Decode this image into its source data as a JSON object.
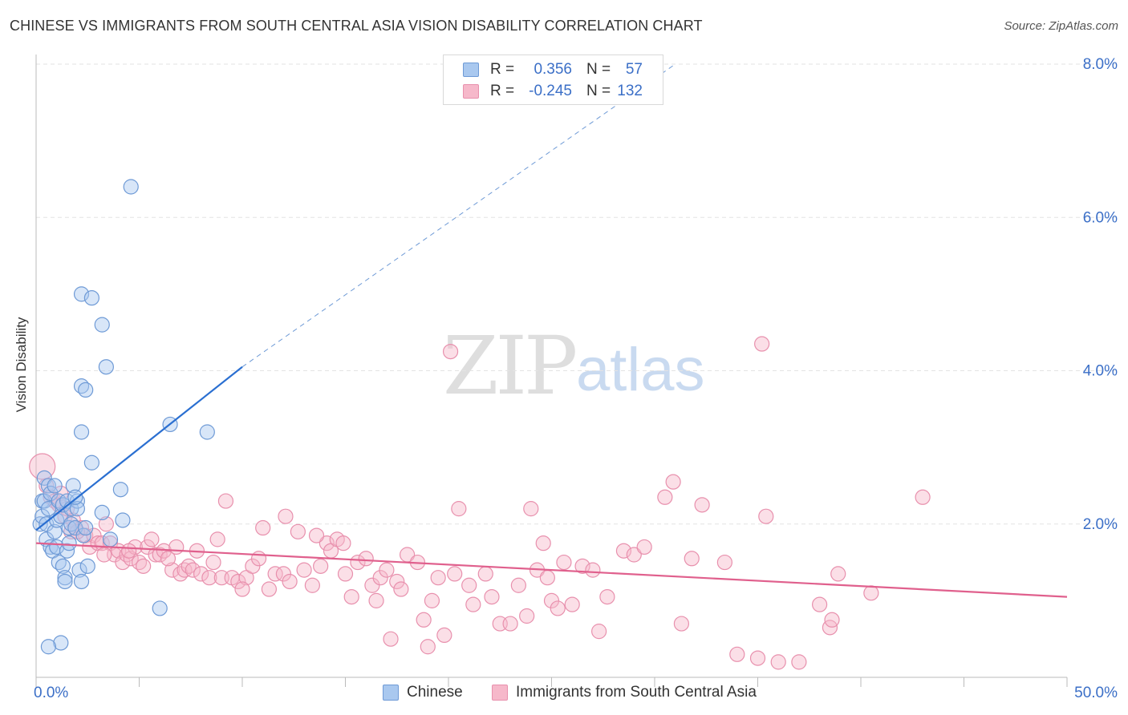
{
  "title": "CHINESE VS IMMIGRANTS FROM SOUTH CENTRAL ASIA VISION DISABILITY CORRELATION CHART",
  "source": "Source: ZipAtlas.com",
  "watermark": {
    "zip": "ZIP",
    "atlas": "atlas"
  },
  "legend": {
    "rows": [
      {
        "r_label": "R =",
        "r_value": "0.356",
        "n_label": "N =",
        "n_value": "57"
      },
      {
        "r_label": "R =",
        "r_value": "-0.245",
        "n_label": "N =",
        "n_value": "132"
      }
    ]
  },
  "bottom_legend": {
    "chinese": "Chinese",
    "immigrants": "Immigrants from South Central Asia"
  },
  "colors": {
    "chinese_fill": "#a9c8ef",
    "chinese_stroke": "#6e9ad6",
    "chinese_line": "#2a6fd1",
    "immigrants_fill": "#f6b8ca",
    "immigrants_stroke": "#e890ad",
    "immigrants_line": "#e0608d",
    "axis_tick_text": "#3b6fc7",
    "grid": "#e3e3e3"
  },
  "chart_data": {
    "type": "scatter",
    "title": "CHINESE VS IMMIGRANTS FROM SOUTH CENTRAL ASIA VISION DISABILITY CORRELATION CHART",
    "xlabel": "",
    "ylabel": "Vision Disability",
    "xlim": [
      0,
      50
    ],
    "ylim": [
      0,
      8.0
    ],
    "x_tick_labels": [
      "0.0%",
      "50.0%"
    ],
    "y_ticks": [
      2.0,
      4.0,
      6.0,
      8.0
    ],
    "y_tick_labels": [
      "2.0%",
      "4.0%",
      "6.0%",
      "8.0%"
    ],
    "grid": "horizontal dashed",
    "legend_position": "top-center",
    "series": [
      {
        "name": "Chinese",
        "points": [
          [
            0.2,
            2.0
          ],
          [
            0.3,
            2.1
          ],
          [
            0.3,
            2.3
          ],
          [
            0.4,
            2.6
          ],
          [
            0.4,
            2.3
          ],
          [
            0.5,
            2.0
          ],
          [
            0.5,
            1.8
          ],
          [
            0.6,
            2.5
          ],
          [
            0.6,
            2.2
          ],
          [
            0.7,
            1.7
          ],
          [
            0.7,
            2.4
          ],
          [
            0.8,
            1.65
          ],
          [
            0.9,
            1.9
          ],
          [
            0.9,
            2.5
          ],
          [
            1.0,
            1.7
          ],
          [
            1.0,
            2.05
          ],
          [
            1.1,
            1.5
          ],
          [
            1.1,
            2.3
          ],
          [
            1.2,
            0.45
          ],
          [
            1.2,
            2.1
          ],
          [
            1.3,
            2.25
          ],
          [
            1.3,
            1.45
          ],
          [
            1.4,
            1.3
          ],
          [
            1.4,
            1.25
          ],
          [
            1.5,
            2.3
          ],
          [
            1.5,
            1.65
          ],
          [
            1.6,
            1.75
          ],
          [
            1.6,
            1.95
          ],
          [
            1.7,
            2.2
          ],
          [
            1.7,
            2.0
          ],
          [
            1.8,
            2.5
          ],
          [
            1.9,
            1.95
          ],
          [
            2.0,
            2.3
          ],
          [
            2.0,
            2.2
          ],
          [
            2.1,
            1.4
          ],
          [
            2.2,
            1.25
          ],
          [
            2.2,
            3.2
          ],
          [
            2.3,
            1.85
          ],
          [
            2.4,
            1.95
          ],
          [
            2.5,
            1.45
          ],
          [
            2.2,
            5.0
          ],
          [
            2.2,
            3.8
          ],
          [
            2.4,
            3.75
          ],
          [
            2.7,
            4.95
          ],
          [
            2.7,
            2.8
          ],
          [
            3.2,
            2.15
          ],
          [
            3.2,
            4.6
          ],
          [
            3.4,
            4.05
          ],
          [
            3.6,
            1.8
          ],
          [
            4.1,
            2.45
          ],
          [
            4.2,
            2.05
          ],
          [
            4.6,
            6.4
          ],
          [
            6.0,
            0.9
          ],
          [
            6.5,
            3.3
          ],
          [
            8.3,
            3.2
          ],
          [
            0.6,
            0.4
          ],
          [
            1.9,
            2.35
          ]
        ],
        "trend": {
          "x": [
            0,
            10
          ],
          "y": [
            1.92,
            4.05
          ],
          "extrapolated_to": [
            31,
            8.0
          ]
        }
      },
      {
        "name": "Immigrants from South Central Asia",
        "points": [
          [
            0.3,
            2.75
          ],
          [
            0.5,
            2.5
          ],
          [
            0.7,
            2.35
          ],
          [
            0.9,
            2.3
          ],
          [
            1.1,
            2.25
          ],
          [
            1.2,
            2.4
          ],
          [
            1.4,
            2.1
          ],
          [
            1.5,
            2.2
          ],
          [
            1.7,
            1.9
          ],
          [
            1.8,
            2.05
          ],
          [
            1.9,
            1.95
          ],
          [
            2.2,
            1.95
          ],
          [
            2.4,
            1.85
          ],
          [
            2.6,
            1.7
          ],
          [
            2.8,
            1.85
          ],
          [
            3.0,
            1.75
          ],
          [
            3.2,
            1.75
          ],
          [
            3.4,
            2.0
          ],
          [
            3.6,
            1.75
          ],
          [
            3.8,
            1.6
          ],
          [
            4.0,
            1.65
          ],
          [
            4.2,
            1.5
          ],
          [
            4.4,
            1.6
          ],
          [
            4.6,
            1.55
          ],
          [
            4.8,
            1.7
          ],
          [
            5.0,
            1.5
          ],
          [
            5.2,
            1.45
          ],
          [
            5.4,
            1.7
          ],
          [
            5.6,
            1.8
          ],
          [
            5.8,
            1.6
          ],
          [
            6.0,
            1.6
          ],
          [
            6.2,
            1.65
          ],
          [
            6.6,
            1.4
          ],
          [
            6.8,
            1.7
          ],
          [
            7.0,
            1.35
          ],
          [
            7.2,
            1.4
          ],
          [
            7.4,
            1.45
          ],
          [
            7.6,
            1.4
          ],
          [
            7.8,
            1.65
          ],
          [
            8.0,
            1.35
          ],
          [
            8.4,
            1.3
          ],
          [
            8.6,
            1.5
          ],
          [
            8.8,
            1.8
          ],
          [
            9.0,
            1.3
          ],
          [
            9.5,
            1.3
          ],
          [
            9.8,
            1.25
          ],
          [
            10.2,
            1.3
          ],
          [
            10.5,
            1.45
          ],
          [
            10.8,
            1.55
          ],
          [
            11.0,
            1.95
          ],
          [
            11.3,
            1.15
          ],
          [
            11.6,
            1.35
          ],
          [
            12.0,
            1.35
          ],
          [
            12.3,
            1.25
          ],
          [
            12.7,
            1.9
          ],
          [
            13.0,
            1.4
          ],
          [
            13.4,
            1.2
          ],
          [
            13.8,
            1.45
          ],
          [
            14.1,
            1.75
          ],
          [
            14.3,
            1.65
          ],
          [
            14.6,
            1.8
          ],
          [
            15.0,
            1.35
          ],
          [
            15.3,
            1.05
          ],
          [
            15.6,
            1.5
          ],
          [
            16.0,
            1.55
          ],
          [
            16.3,
            1.2
          ],
          [
            16.7,
            1.3
          ],
          [
            17.0,
            1.4
          ],
          [
            17.5,
            1.25
          ],
          [
            17.7,
            1.15
          ],
          [
            18.0,
            1.6
          ],
          [
            18.5,
            1.5
          ],
          [
            18.8,
            0.75
          ],
          [
            19.2,
            1.0
          ],
          [
            19.5,
            1.3
          ],
          [
            19.8,
            0.55
          ],
          [
            20.3,
            1.35
          ],
          [
            20.5,
            2.2
          ],
          [
            21.0,
            1.2
          ],
          [
            21.2,
            0.95
          ],
          [
            21.8,
            1.35
          ],
          [
            22.1,
            1.05
          ],
          [
            22.5,
            0.7
          ],
          [
            23.0,
            0.7
          ],
          [
            23.4,
            1.2
          ],
          [
            23.8,
            0.8
          ],
          [
            24.0,
            2.2
          ],
          [
            24.3,
            1.4
          ],
          [
            24.6,
            1.75
          ],
          [
            25.0,
            1.0
          ],
          [
            25.6,
            1.5
          ],
          [
            26.0,
            0.95
          ],
          [
            26.5,
            1.45
          ],
          [
            27.0,
            1.4
          ],
          [
            27.7,
            1.05
          ],
          [
            28.5,
            1.65
          ],
          [
            29.0,
            1.6
          ],
          [
            29.5,
            1.7
          ],
          [
            30.5,
            2.35
          ],
          [
            30.9,
            2.55
          ],
          [
            31.3,
            0.7
          ],
          [
            31.8,
            1.55
          ],
          [
            32.3,
            2.25
          ],
          [
            33.4,
            1.5
          ],
          [
            34.0,
            0.3
          ],
          [
            35.0,
            0.25
          ],
          [
            36.0,
            0.2
          ],
          [
            35.4,
            2.1
          ],
          [
            37.0,
            0.2
          ],
          [
            38.0,
            0.95
          ],
          [
            38.5,
            0.65
          ],
          [
            38.6,
            0.75
          ],
          [
            38.9,
            1.35
          ],
          [
            40.5,
            1.1
          ],
          [
            43.0,
            2.35
          ],
          [
            20.1,
            4.25
          ],
          [
            35.2,
            4.35
          ],
          [
            9.2,
            2.3
          ],
          [
            12.1,
            2.1
          ],
          [
            13.6,
            1.85
          ],
          [
            4.5,
            1.65
          ],
          [
            6.4,
            1.55
          ],
          [
            17.2,
            0.5
          ],
          [
            24.8,
            1.3
          ],
          [
            27.3,
            0.6
          ],
          [
            25.3,
            0.9
          ],
          [
            2.0,
            1.9
          ],
          [
            3.3,
            1.6
          ],
          [
            19.0,
            0.4
          ],
          [
            14.9,
            1.75
          ],
          [
            16.5,
            1.0
          ],
          [
            10.0,
            1.15
          ]
        ],
        "trend": {
          "x": [
            0,
            50
          ],
          "y": [
            1.75,
            1.05
          ]
        }
      }
    ]
  }
}
